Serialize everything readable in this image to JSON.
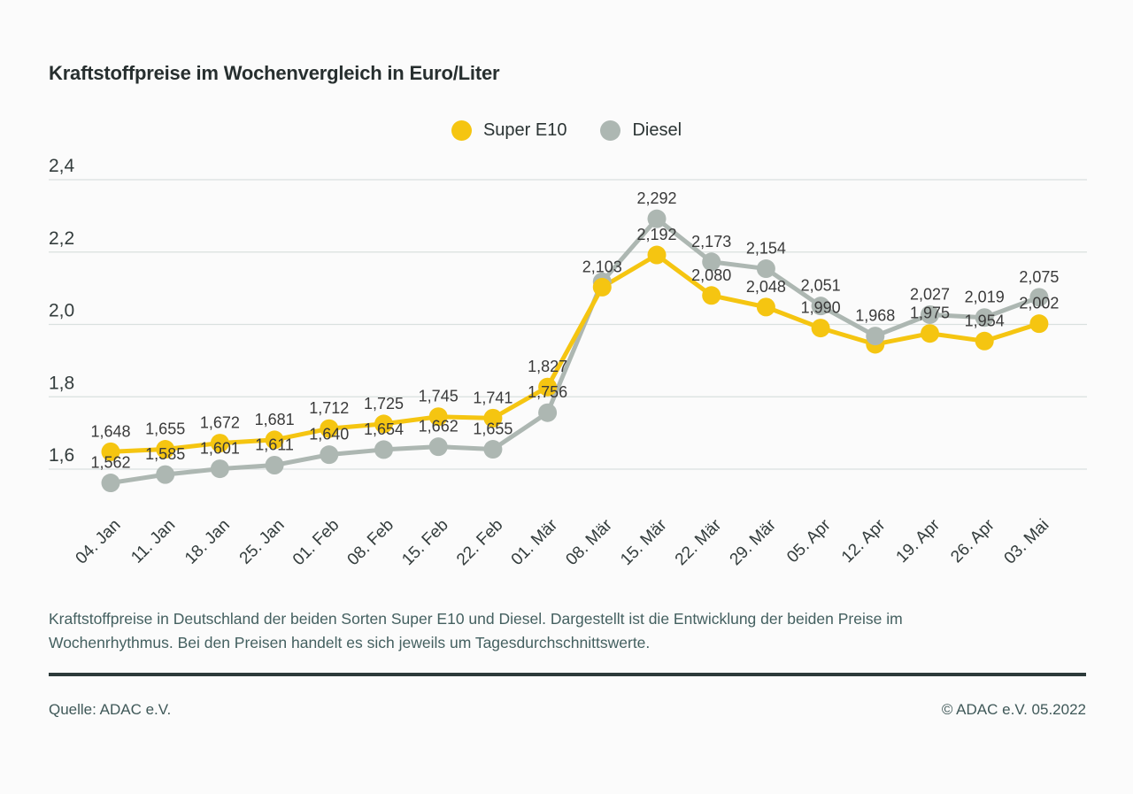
{
  "title": "Kraftstoffpreise im Wochenvergleich in Euro/Liter",
  "chart_data": {
    "type": "line",
    "title": "Kraftstoffpreise im Wochenvergleich in Euro/Liter",
    "ylabel": "Euro/Liter",
    "xlabel": "",
    "ylim": [
      1.5,
      2.4
    ],
    "grid": "horizontal",
    "legend_position": "top-center",
    "ytick_values": [
      2.4,
      2.2,
      2.0,
      1.8,
      1.6
    ],
    "ytick_labels": [
      "2,4",
      "2,2",
      "2,0",
      "1,8",
      "1,6"
    ],
    "categories": [
      "04. Jan",
      "11. Jan",
      "18. Jan",
      "25. Jan",
      "01. Feb",
      "08. Feb",
      "15. Feb",
      "22. Feb",
      "01. Mär",
      "08. Mär",
      "15. Mär",
      "22. Mär",
      "29. Mär",
      "05. Apr",
      "12. Apr",
      "19. Apr",
      "26. Apr",
      "03. Mai"
    ],
    "series": [
      {
        "name": "Super E10",
        "color": "#F5C511",
        "values": [
          1.648,
          1.655,
          1.672,
          1.681,
          1.712,
          1.725,
          1.745,
          1.741,
          1.827,
          2.103,
          2.192,
          2.08,
          2.048,
          1.99,
          1.945,
          1.975,
          1.954,
          2.002
        ],
        "labels": [
          "1,648",
          "1,655",
          "1,672",
          "1,681",
          "1,712",
          "1,725",
          "1,745",
          "1,741",
          "1,827",
          "2,103",
          "2,192",
          "2,080",
          "2,048",
          "1,990",
          "",
          "1,975",
          "1,954",
          "2,002"
        ]
      },
      {
        "name": "Diesel",
        "color": "#ADB7B2",
        "values": [
          1.562,
          1.585,
          1.601,
          1.611,
          1.64,
          1.654,
          1.662,
          1.655,
          1.756,
          2.118,
          2.292,
          2.173,
          2.154,
          2.051,
          1.968,
          2.027,
          2.019,
          2.075
        ],
        "labels": [
          "1,562",
          "1,585",
          "1,601",
          "1,611",
          "1,640",
          "1,654",
          "1,662",
          "1,655",
          "1,756",
          "",
          "2,292",
          "2,173",
          "2,154",
          "2,051",
          "1,968",
          "2,027",
          "2,019",
          "2,075"
        ]
      }
    ]
  },
  "description_lines": [
    "Kraftstoffpreise in Deutschland der beiden Sorten Super E10 und Diesel. Dargestellt ist die Entwicklung der beiden Preise im",
    "Wochenrhythmus. Bei den Preisen handelt es sich jeweils um Tagesdurchschnittswerte."
  ],
  "footer": {
    "source": "Quelle: ADAC e.V.",
    "copyright": "© ADAC e.V. 05.2022"
  },
  "colors": {
    "grid": "#DAE0DF",
    "axis_text": "#333c3c",
    "data_label": "#3a3a3a",
    "rule": "#2c3a3a"
  }
}
